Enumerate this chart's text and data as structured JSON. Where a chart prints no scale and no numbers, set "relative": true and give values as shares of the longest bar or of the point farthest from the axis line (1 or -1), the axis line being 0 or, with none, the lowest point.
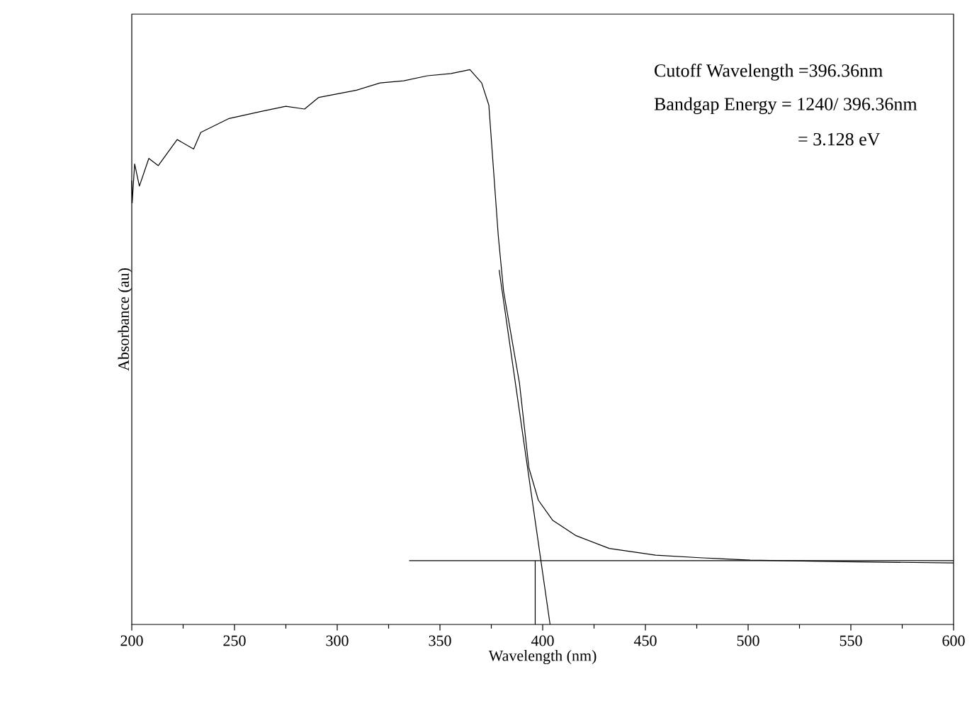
{
  "chart_data": {
    "type": "line",
    "relative": true,
    "xlabel": "Wavelength (nm)",
    "ylabel": "Absorbance (au)",
    "xlim": [
      200,
      600
    ],
    "xticks": [
      200,
      250,
      300,
      350,
      400,
      450,
      500,
      550,
      600
    ],
    "annotations": [
      "Cutoff Wavelength =396.36nm",
      "Bandgap Energy = 1240/ 396.36nm",
      "= 3.128 eV"
    ],
    "series": [
      {
        "color": "#000000",
        "x": [
          200,
          200.2,
          201.4,
          203.7,
          208.3,
          212.9,
          222.1,
          230.1,
          233.6,
          247.4,
          263.4,
          275,
          284.1,
          291,
          309.4,
          320.9,
          332.4,
          343.9,
          355.4,
          364.6,
          370.3,
          373.8,
          378.4,
          381,
          388.7,
          393.3,
          397.9,
          404.8,
          416.3,
          432.4,
          455,
          478,
          501,
          547,
          600
        ],
        "values": [
          0.8,
          0.76,
          0.83,
          0.79,
          0.84,
          0.827,
          0.874,
          0.857,
          0.887,
          0.912,
          0.925,
          0.934,
          0.929,
          0.95,
          0.963,
          0.976,
          0.98,
          0.989,
          0.993,
          1.0,
          0.976,
          0.936,
          0.7,
          0.6,
          0.435,
          0.282,
          0.224,
          0.188,
          0.16,
          0.137,
          0.125,
          0.12,
          0.116,
          0.113,
          0.111
        ]
      },
      {
        "color": "#000000",
        "x": [
          378.8,
          403.6
        ],
        "values": [
          0.639,
          0
        ]
      },
      {
        "color": "#000000",
        "x": [
          335,
          600
        ],
        "values": [
          0.115,
          0.115
        ]
      },
      {
        "color": "#000000",
        "x": [
          396.36,
          396.36
        ],
        "values": [
          0.115,
          0
        ]
      }
    ]
  }
}
